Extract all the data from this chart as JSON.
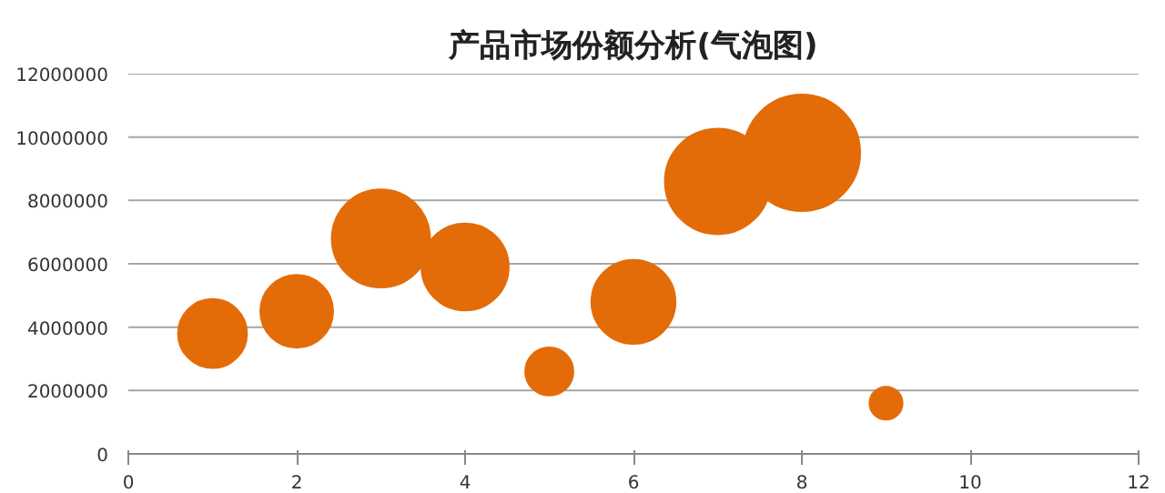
{
  "chart_data": {
    "type": "bubble",
    "title": "产品市场份额分析(气泡图)",
    "x": [
      1,
      2,
      3,
      4,
      5,
      6,
      7,
      8,
      9
    ],
    "series": [
      {
        "color": "#e36c09",
        "values": [
          3800000,
          4500000,
          6800000,
          5900000,
          2600000,
          4800000,
          8600000,
          9500000,
          1600000
        ],
        "sizes": [
          0.35,
          0.39,
          0.71,
          0.56,
          0.17,
          0.52,
          0.82,
          1,
          0.08
        ]
      }
    ],
    "xlim": [
      0,
      12
    ],
    "xticks": [
      0,
      2,
      4,
      6,
      8,
      10,
      12
    ],
    "ylim": [
      0,
      12000000
    ],
    "yticks": [
      0,
      2000000,
      4000000,
      6000000,
      8000000,
      10000000,
      12000000
    ],
    "grid": "y"
  }
}
